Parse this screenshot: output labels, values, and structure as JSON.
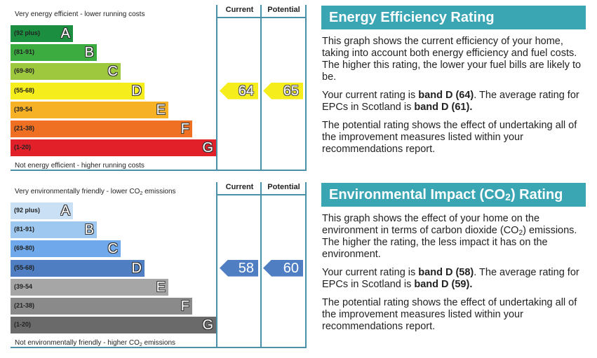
{
  "columns": {
    "current": "Current",
    "potential": "Potential"
  },
  "energy_efficiency": {
    "top_caption": "Very energy efficient - lower running costs",
    "bottom_caption": "Not energy efficient - higher running costs",
    "bands": [
      {
        "range": "(92 plus)",
        "letter": "A",
        "color": "#1b8f3f"
      },
      {
        "range": "(81-91)",
        "letter": "B",
        "color": "#3cac41"
      },
      {
        "range": "(69-80)",
        "letter": "C",
        "color": "#9ec93f"
      },
      {
        "range": "(55-68)",
        "letter": "D",
        "color": "#f6ee1c"
      },
      {
        "range": "(39-54",
        "letter": "E",
        "color": "#f7b127"
      },
      {
        "range": "(21-38)",
        "letter": "F",
        "color": "#ef7023"
      },
      {
        "range": "(1-20)",
        "letter": "G",
        "color": "#e2202a"
      }
    ],
    "current": {
      "value": "64",
      "band_index": 3,
      "color": "#f6ee1c"
    },
    "potential": {
      "value": "65",
      "band_index": 3,
      "color": "#f6ee1c"
    },
    "panel": {
      "title": "Energy Efficiency Rating",
      "para1": "This graph shows the current efficiency of your home, taking into account both energy efficiency and fuel costs. The higher this rating, the lower your fuel bills are likely to be.",
      "para2_prefix": "Your current rating is ",
      "para2_current": "band D (64)",
      "para2_mid": ". The average rating for EPCs in Scotland is ",
      "para2_avg": "band D (61).",
      "para3": "The potential rating shows the effect of undertaking all of the improvement measures listed within your recommendations report."
    }
  },
  "environmental_impact": {
    "top_caption_prefix": "Very environmentally friendly - lower CO",
    "top_caption_sub": "2",
    "top_caption_suffix": " emissions",
    "bottom_caption_prefix": "Not environmentally friendly - higher CO",
    "bottom_caption_sub": "2",
    "bottom_caption_suffix": " emissions",
    "bands": [
      {
        "range": "(92 plus)",
        "letter": "A",
        "color": "#c9e0f5"
      },
      {
        "range": "(81-91)",
        "letter": "B",
        "color": "#9ec8f0"
      },
      {
        "range": "(69-80)",
        "letter": "C",
        "color": "#6fa9ec"
      },
      {
        "range": "(55-68)",
        "letter": "D",
        "color": "#4f7fc2"
      },
      {
        "range": "(39-54",
        "letter": "E",
        "color": "#a6a6a6"
      },
      {
        "range": "(21-38)",
        "letter": "F",
        "color": "#8a8a8a"
      },
      {
        "range": "(1-20)",
        "letter": "G",
        "color": "#6a6a6a"
      }
    ],
    "current": {
      "value": "58",
      "band_index": 3,
      "color": "#4f7fc2"
    },
    "potential": {
      "value": "60",
      "band_index": 3,
      "color": "#4f7fc2"
    },
    "panel": {
      "title_prefix": "Environmental Impact (CO",
      "title_sub": "2",
      "title_suffix": ") Rating",
      "para1_prefix": "This graph shows the effect of your home on the environment in terms of carbon dioxide (CO",
      "para1_sub": "2",
      "para1_suffix": ") emissions. The higher the rating, the less impact it has on the environment.",
      "para2_prefix": "Your current rating is ",
      "para2_current": "band D (58)",
      "para2_mid": ". The average rating for EPCs in Scotland is ",
      "para2_avg": "band D (59).",
      "para3": "The potential rating shows the effect of undertaking all of the improvement measures listed within your recommendations report."
    }
  }
}
